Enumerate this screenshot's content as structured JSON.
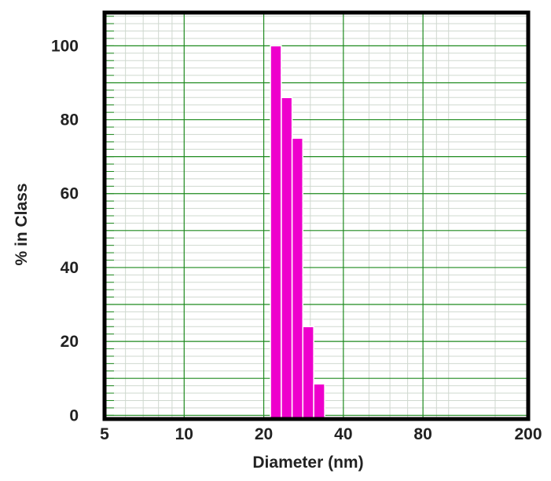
{
  "chart_data": {
    "type": "bar",
    "title": "",
    "xlabel": "Diameter (nm)",
    "ylabel": "% in Class",
    "x_scale": "log",
    "xlim": [
      5,
      200
    ],
    "ylim": [
      -1,
      109
    ],
    "x_tick_labels": [
      "5",
      "10",
      "20",
      "40",
      "80",
      "200"
    ],
    "x_tick_values": [
      5,
      10,
      20,
      40,
      80,
      200
    ],
    "y_tick_labels": [
      "100",
      "80",
      "60",
      "40",
      "20",
      "0"
    ],
    "y_tick_values": [
      100,
      80,
      60,
      40,
      20,
      0
    ],
    "bins": [
      {
        "x_start": 21.2,
        "x_end": 23.3,
        "value": 100
      },
      {
        "x_start": 23.3,
        "x_end": 25.6,
        "value": 86
      },
      {
        "x_start": 25.6,
        "x_end": 28.1,
        "value": 75
      },
      {
        "x_start": 28.1,
        "x_end": 30.9,
        "value": 24
      },
      {
        "x_start": 30.9,
        "x_end": 34.0,
        "value": 8.5
      }
    ],
    "grid": true,
    "colors": {
      "bar": "#ee00cc",
      "bar_edge": "#ffffff",
      "grid_major": "#1e8a1e",
      "grid_minor": "#cfd8cf",
      "frame": "#000000"
    }
  }
}
